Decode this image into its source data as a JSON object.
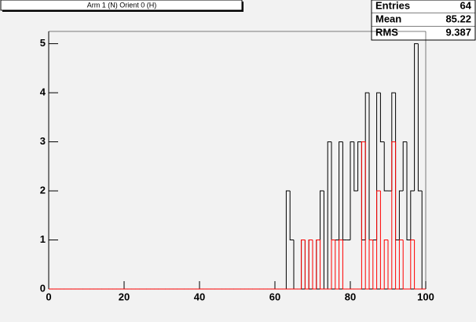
{
  "chart_data": {
    "type": "histogram",
    "title": "Arm 1 (N) Orient 0 (H)",
    "bins": [
      0,
      1,
      2,
      3,
      4,
      5,
      6,
      7,
      8,
      9,
      10,
      11,
      12,
      13,
      14,
      15,
      16,
      17,
      18,
      19,
      20,
      21,
      22,
      23,
      24,
      25,
      26,
      27,
      28,
      29,
      30,
      31,
      32,
      33,
      34,
      35,
      36,
      37,
      38,
      39,
      40,
      41,
      42,
      43,
      44,
      45,
      46,
      47,
      48,
      49,
      50,
      51,
      52,
      53,
      54,
      55,
      56,
      57,
      58,
      59,
      60,
      61,
      62,
      63,
      64,
      65,
      66,
      67,
      68,
      69,
      70,
      71,
      72,
      73,
      74,
      75,
      76,
      77,
      78,
      79,
      80,
      81,
      82,
      83,
      84,
      85,
      86,
      87,
      88,
      89,
      90,
      91,
      92,
      93,
      94,
      95,
      96,
      97,
      98,
      99,
      100
    ],
    "series": [
      {
        "color": "#000000",
        "values": [
          0,
          0,
          0,
          0,
          0,
          0,
          0,
          0,
          0,
          0,
          0,
          0,
          0,
          0,
          0,
          0,
          0,
          0,
          0,
          0,
          0,
          0,
          0,
          0,
          0,
          0,
          0,
          0,
          0,
          0,
          0,
          0,
          0,
          0,
          0,
          0,
          0,
          0,
          0,
          0,
          0,
          0,
          0,
          0,
          0,
          0,
          0,
          0,
          0,
          0,
          0,
          0,
          0,
          0,
          0,
          0,
          0,
          0,
          0,
          0,
          0,
          0,
          0,
          2,
          1,
          0,
          0,
          1,
          0,
          1,
          0,
          1,
          2,
          0,
          3,
          1,
          1,
          3,
          1,
          1,
          3,
          2,
          3,
          1,
          4,
          1,
          1,
          4,
          3,
          2,
          2,
          4,
          1,
          2,
          3,
          1,
          2,
          5,
          2,
          0
        ]
      },
      {
        "color": "#ff0000",
        "values": [
          0,
          0,
          0,
          0,
          0,
          0,
          0,
          0,
          0,
          0,
          0,
          0,
          0,
          0,
          0,
          0,
          0,
          0,
          0,
          0,
          0,
          0,
          0,
          0,
          0,
          0,
          0,
          0,
          0,
          0,
          0,
          0,
          0,
          0,
          0,
          0,
          0,
          0,
          0,
          0,
          0,
          0,
          0,
          0,
          0,
          0,
          0,
          0,
          0,
          0,
          0,
          0,
          0,
          0,
          0,
          0,
          0,
          0,
          0,
          0,
          0,
          0,
          0,
          0,
          0,
          0,
          0,
          1,
          0,
          1,
          0,
          1,
          0,
          0,
          0,
          1,
          0,
          1,
          0,
          0,
          0,
          0,
          0,
          3,
          0,
          1,
          0,
          2,
          0,
          1,
          0,
          3,
          0,
          1,
          0,
          0,
          1,
          0,
          0,
          0
        ]
      }
    ],
    "xlim": [
      0,
      100
    ],
    "xticks": [
      0,
      20,
      40,
      60,
      80,
      100
    ],
    "ylim": [
      0,
      5.25
    ],
    "yticks": [
      0,
      1,
      2,
      3,
      4,
      5
    ],
    "stats": [
      {
        "label": "Entries",
        "value": 64
      },
      {
        "label": "Mean",
        "value": 85.22
      },
      {
        "label": "RMS",
        "value": 9.387
      }
    ]
  }
}
